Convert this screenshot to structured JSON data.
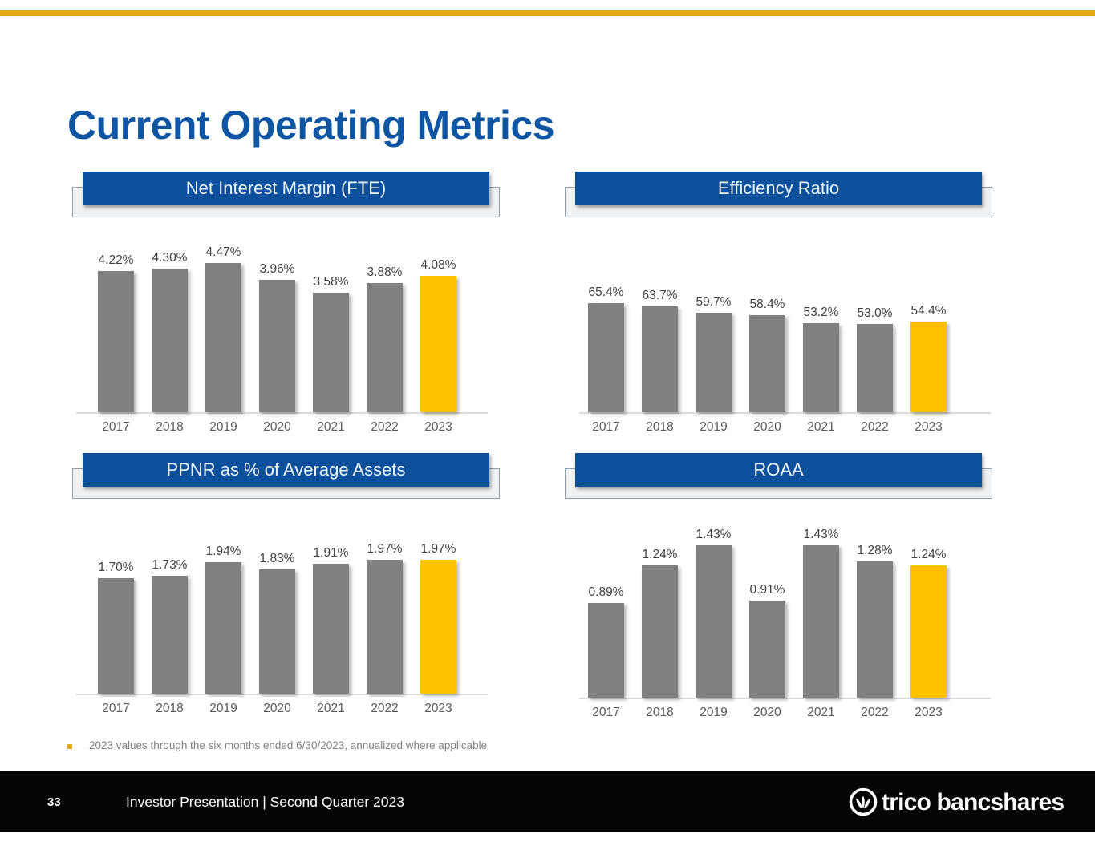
{
  "slide": {
    "title": "Current Operating Metrics",
    "footnote": "2023 values through the six months ended 6/30/2023, annualized where applicable",
    "footer": {
      "page_number": "33",
      "text": "Investor Presentation | Second Quarter 2023",
      "logo_text": "trico bancshares"
    },
    "colors": {
      "accent_gold": "#FFC000",
      "top_rule_gold": "#E6A817",
      "bar_gray": "#808080",
      "header_blue": "#0C509C",
      "title_blue": "#0E55A3"
    }
  },
  "chart_data": [
    {
      "id": "nim",
      "type": "bar",
      "title": "Net Interest Margin (FTE)",
      "categories": [
        "2017",
        "2018",
        "2019",
        "2020",
        "2021",
        "2022",
        "2023"
      ],
      "values": [
        4.22,
        4.3,
        4.47,
        3.96,
        3.58,
        3.88,
        4.08
      ],
      "labels": [
        "4.22%",
        "4.30%",
        "4.47%",
        "3.96%",
        "3.58%",
        "3.88%",
        "4.08%"
      ],
      "highlight_index": 6,
      "ylim": [
        0,
        4.47
      ],
      "grid": false,
      "legend": "none"
    },
    {
      "id": "eff",
      "type": "bar",
      "title": "Efficiency Ratio",
      "categories": [
        "2017",
        "2018",
        "2019",
        "2020",
        "2021",
        "2022",
        "2023"
      ],
      "values": [
        65.4,
        63.7,
        59.7,
        58.4,
        53.2,
        53.0,
        54.4
      ],
      "labels": [
        "65.4%",
        "63.7%",
        "59.7%",
        "58.4%",
        "53.2%",
        "53.0%",
        "54.4%"
      ],
      "highlight_index": 6,
      "ylim": [
        0,
        65.4
      ],
      "grid": false,
      "legend": "none"
    },
    {
      "id": "ppnr",
      "type": "bar",
      "title": "PPNR as % of Average Assets",
      "categories": [
        "2017",
        "2018",
        "2019",
        "2020",
        "2021",
        "2022",
        "2023"
      ],
      "values": [
        1.7,
        1.73,
        1.94,
        1.83,
        1.91,
        1.97,
        1.97
      ],
      "labels": [
        "1.70%",
        "1.73%",
        "1.94%",
        "1.83%",
        "1.91%",
        "1.97%",
        "1.97%"
      ],
      "highlight_index": 6,
      "ylim": [
        0,
        1.97
      ],
      "grid": false,
      "legend": "none"
    },
    {
      "id": "roaa",
      "type": "bar",
      "title": "ROAA",
      "categories": [
        "2017",
        "2018",
        "2019",
        "2020",
        "2021",
        "2022",
        "2023"
      ],
      "values": [
        0.89,
        1.24,
        1.43,
        0.91,
        1.43,
        1.28,
        1.24
      ],
      "labels": [
        "0.89%",
        "1.24%",
        "1.43%",
        "0.91%",
        "1.43%",
        "1.28%",
        "1.24%"
      ],
      "highlight_index": 6,
      "ylim": [
        0,
        1.43
      ],
      "grid": false,
      "legend": "none"
    }
  ]
}
